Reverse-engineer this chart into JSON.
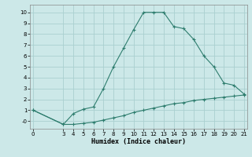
{
  "title": "",
  "xlabel": "Humidex (Indice chaleur)",
  "bg_color": "#cce8e8",
  "grid_color": "#aad0d0",
  "line_color": "#2e7d6e",
  "curve1_x": [
    0,
    3,
    4,
    5,
    6,
    7,
    8,
    9,
    10,
    11,
    12,
    13,
    14,
    15,
    16,
    17,
    18,
    19,
    20,
    21
  ],
  "curve1_y": [
    1.0,
    -0.3,
    -0.3,
    -0.2,
    -0.1,
    0.1,
    0.3,
    0.5,
    0.8,
    1.0,
    1.2,
    1.4,
    1.6,
    1.7,
    1.9,
    2.0,
    2.1,
    2.2,
    2.3,
    2.4
  ],
  "curve2_x": [
    0,
    3,
    4,
    5,
    6,
    7,
    8,
    9,
    10,
    11,
    12,
    13,
    14,
    15,
    16,
    17,
    18,
    19,
    20,
    21
  ],
  "curve2_y": [
    1.0,
    -0.3,
    0.7,
    1.1,
    1.3,
    3.0,
    5.0,
    6.7,
    8.4,
    10.0,
    10.0,
    10.0,
    8.7,
    8.5,
    7.5,
    6.0,
    5.0,
    3.5,
    3.3,
    2.5
  ],
  "xlim": [
    -0.3,
    21.3
  ],
  "ylim": [
    -0.7,
    10.7
  ],
  "xticks": [
    0,
    3,
    4,
    5,
    6,
    7,
    8,
    9,
    10,
    11,
    12,
    13,
    14,
    15,
    16,
    17,
    18,
    19,
    20,
    21
  ],
  "yticks": [
    0,
    1,
    2,
    3,
    4,
    5,
    6,
    7,
    8,
    9,
    10
  ],
  "xlabel_fontsize": 6.0,
  "tick_fontsize": 5.0
}
